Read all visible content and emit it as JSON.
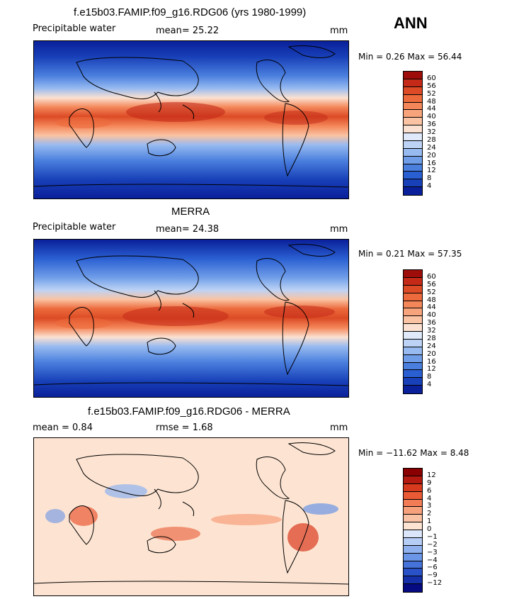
{
  "header": {
    "season": "ANN"
  },
  "panels": [
    {
      "id": "model",
      "title": "f.e15b03.FAMIP.f09_g16.RDG06 (yrs 1980-1999)",
      "left_label": "Precipitable water",
      "mid_label": "mean=   25.22",
      "units": "mm",
      "minmax": "Min =    0.26  Max =   56.44",
      "colorbar": {
        "labels": [
          "60",
          "56",
          "52",
          "48",
          "44",
          "40",
          "36",
          "32",
          "28",
          "24",
          "20",
          "16",
          "12",
          "8",
          "4"
        ],
        "colors": [
          "#9e0d0a",
          "#c42a17",
          "#dc4b25",
          "#ec6a3c",
          "#f4875a",
          "#f7a47c",
          "#fac3a3",
          "#fbe1d1",
          "#dfe9f9",
          "#bcd3f5",
          "#97baf0",
          "#6f9de8",
          "#4a7fde",
          "#2a5fd2",
          "#1840b8",
          "#0a209a"
        ]
      }
    },
    {
      "id": "obs",
      "title": "MERRA",
      "left_label": "Precipitable water",
      "mid_label": "mean=   24.38",
      "units": "mm",
      "minmax": "Min =    0.21  Max =   57.35",
      "colorbar": {
        "labels": [
          "60",
          "56",
          "52",
          "48",
          "44",
          "40",
          "36",
          "32",
          "28",
          "24",
          "20",
          "16",
          "12",
          "8",
          "4"
        ],
        "colors": [
          "#9e0d0a",
          "#c42a17",
          "#dc4b25",
          "#ec6a3c",
          "#f4875a",
          "#f7a47c",
          "#fac3a3",
          "#fbe1d1",
          "#dfe9f9",
          "#bcd3f5",
          "#97baf0",
          "#6f9de8",
          "#4a7fde",
          "#2a5fd2",
          "#1840b8",
          "#0a209a"
        ]
      }
    },
    {
      "id": "diff",
      "title": "f.e15b03.FAMIP.f09_g16.RDG06 - MERRA",
      "left_label": "mean =    0.84",
      "mid_label": "rmse =    1.68",
      "units": "mm",
      "minmax": "Min = −11.62  Max =    8.48",
      "colorbar": {
        "labels": [
          "12",
          "9",
          "6",
          "4",
          "3",
          "2",
          "1",
          "0",
          "−1",
          "−2",
          "−3",
          "−4",
          "−6",
          "−9",
          "−12"
        ],
        "colors": [
          "#8a0000",
          "#b51a10",
          "#d83a1e",
          "#ea5a34",
          "#f27c55",
          "#f6a07c",
          "#f9c2a4",
          "#fde4d2",
          "#dce6fa",
          "#b6cdf6",
          "#8fb2ef",
          "#6b95e6",
          "#4673da",
          "#2a52c8",
          "#1530a8",
          "#060a80"
        ]
      }
    }
  ]
}
